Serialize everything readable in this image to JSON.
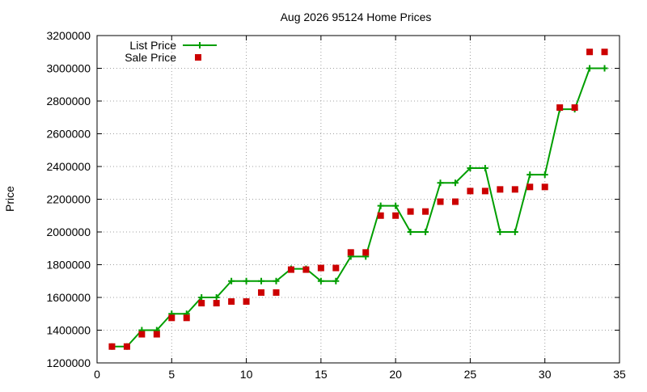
{
  "chart_data": {
    "type": "line",
    "title": "Aug 2026 95124 Home Prices",
    "xlabel": "",
    "ylabel": "Price",
    "xlim": [
      0,
      35
    ],
    "ylim": [
      1200000,
      3200000
    ],
    "x_ticks": [
      0,
      5,
      10,
      15,
      20,
      25,
      30,
      35
    ],
    "y_ticks": [
      1200000,
      1400000,
      1600000,
      1800000,
      2000000,
      2200000,
      2400000,
      2600000,
      2800000,
      3000000,
      3200000
    ],
    "grid": true,
    "legend_position": "top-left",
    "series": [
      {
        "name": "List Price",
        "style": "line-with-plus-markers",
        "color": "#009e00",
        "x": [
          1,
          2,
          3,
          4,
          5,
          6,
          7,
          8,
          9,
          10,
          11,
          12,
          13,
          14,
          15,
          16,
          17,
          18,
          19,
          20,
          21,
          22,
          23,
          24,
          25,
          26,
          27,
          28,
          29,
          30,
          31,
          32,
          33,
          34
        ],
        "y": [
          1300000,
          1300000,
          1400000,
          1400000,
          1500000,
          1500000,
          1600000,
          1600000,
          1700000,
          1700000,
          1700000,
          1700000,
          1775000,
          1775000,
          1700000,
          1700000,
          1850000,
          1850000,
          2160000,
          2160000,
          2000000,
          2000000,
          2300000,
          2300000,
          2390000,
          2390000,
          2000000,
          2000000,
          2350000,
          2350000,
          2750000,
          2750000,
          3000000,
          3000000
        ]
      },
      {
        "name": "Sale Price",
        "style": "square-markers",
        "color": "#cc0000",
        "x": [
          1,
          2,
          3,
          4,
          5,
          6,
          7,
          8,
          9,
          10,
          11,
          12,
          13,
          14,
          15,
          16,
          17,
          18,
          19,
          20,
          21,
          22,
          23,
          24,
          25,
          26,
          27,
          28,
          29,
          30,
          31,
          32,
          33,
          34
        ],
        "y": [
          1300000,
          1300000,
          1375000,
          1375000,
          1475000,
          1475000,
          1565000,
          1565000,
          1575000,
          1575000,
          1630000,
          1630000,
          1770000,
          1770000,
          1780000,
          1780000,
          1875000,
          1875000,
          2100000,
          2100000,
          2125000,
          2125000,
          2185000,
          2185000,
          2250000,
          2250000,
          2260000,
          2260000,
          2275000,
          2275000,
          2760000,
          2760000,
          3100000,
          3100000
        ]
      }
    ]
  }
}
